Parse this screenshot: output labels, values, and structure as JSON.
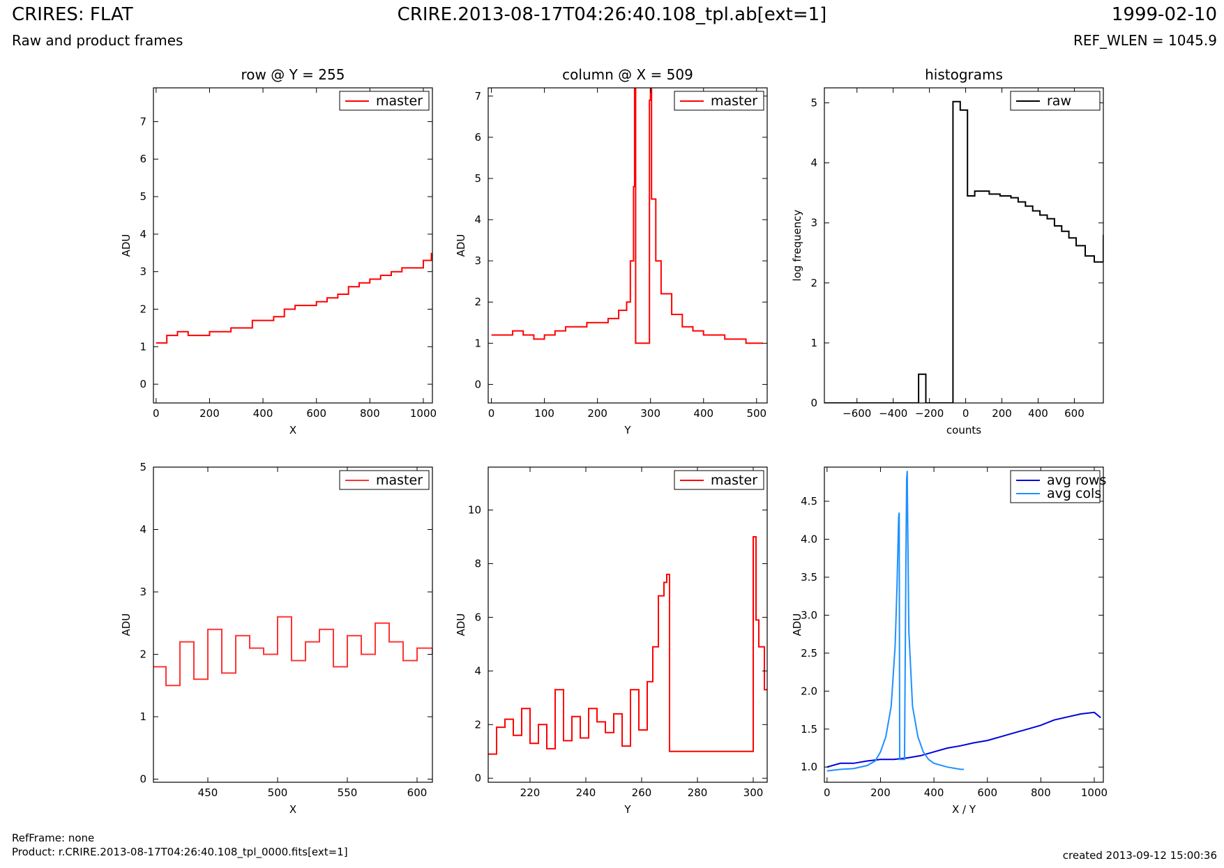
{
  "header": {
    "title_left": "CRIRES: FLAT",
    "subtitle_left": "Raw and product frames",
    "title_center": "CRIRE.2013-08-17T04:26:40.108_tpl.ab[ext=1]",
    "title_right": "1999-02-10",
    "subtitle_right": "REF_WLEN = 1045.9"
  },
  "footer": {
    "ref_frame": "RefFrame: none",
    "product": "Product: r.CRIRE.2013-08-17T04:26:40.108_tpl_0000.fits[ext=1]",
    "created": "created 2013-09-12 15:00:36"
  },
  "colors": {
    "master": "#ff0000",
    "master_zoom": "#ff3333",
    "raw": "#000000",
    "avg_rows": "#0000dd",
    "avg_cols": "#1e90ff"
  },
  "chart_data": [
    {
      "id": "row-plot",
      "type": "line",
      "title": "row @ Y = 255",
      "xlabel": "X",
      "ylabel": "ADU",
      "xlim": [
        -10,
        1034
      ],
      "ylim": [
        -0.5,
        7.9
      ],
      "xticks": [
        0,
        200,
        400,
        600,
        800,
        1000
      ],
      "yticks": [
        0,
        1,
        2,
        3,
        4,
        5,
        6,
        7
      ],
      "legend": {
        "position": "top-right",
        "entries": [
          "master"
        ]
      },
      "series": [
        {
          "name": "master",
          "color": "#ff0000",
          "step": true,
          "x": [
            0,
            40,
            80,
            120,
            160,
            200,
            240,
            280,
            320,
            360,
            400,
            440,
            480,
            520,
            560,
            600,
            640,
            680,
            720,
            760,
            800,
            840,
            880,
            920,
            960,
            1000,
            1030
          ],
          "values": [
            1.1,
            1.3,
            1.4,
            1.3,
            1.3,
            1.4,
            1.4,
            1.5,
            1.5,
            1.7,
            1.7,
            1.8,
            2.0,
            2.1,
            2.1,
            2.2,
            2.3,
            2.4,
            2.6,
            2.7,
            2.8,
            2.9,
            3.0,
            3.1,
            3.1,
            3.3,
            3.5
          ]
        }
      ]
    },
    {
      "id": "column-plot",
      "type": "line",
      "title": "column @ X = 509",
      "xlabel": "Y",
      "ylabel": "ADU",
      "xlim": [
        -6,
        520
      ],
      "ylim": [
        -0.45,
        7.2
      ],
      "xticks": [
        0,
        100,
        200,
        300,
        400,
        500
      ],
      "yticks": [
        0,
        1,
        2,
        3,
        4,
        5,
        6,
        7
      ],
      "legend": {
        "position": "top-right",
        "entries": [
          "master"
        ]
      },
      "series": [
        {
          "name": "master",
          "color": "#ff0000",
          "step": true,
          "x": [
            0,
            20,
            40,
            60,
            80,
            100,
            120,
            140,
            160,
            180,
            200,
            220,
            240,
            255,
            262,
            268,
            270,
            272,
            290,
            298,
            300,
            302,
            310,
            320,
            340,
            360,
            380,
            400,
            420,
            440,
            460,
            480,
            500,
            512
          ],
          "values": [
            1.2,
            1.2,
            1.3,
            1.2,
            1.1,
            1.2,
            1.3,
            1.4,
            1.4,
            1.5,
            1.5,
            1.6,
            1.8,
            2.0,
            3.0,
            4.8,
            7.3,
            1.0,
            1.0,
            6.9,
            7.3,
            4.5,
            3.0,
            2.2,
            1.7,
            1.4,
            1.3,
            1.2,
            1.2,
            1.1,
            1.1,
            1.0,
            1.0,
            1.0
          ]
        }
      ]
    },
    {
      "id": "histogram-plot",
      "type": "line",
      "title": "histograms",
      "xlabel": "counts",
      "ylabel": "log frequency",
      "xlim": [
        -780,
        760
      ],
      "ylim": [
        0,
        5.25
      ],
      "xticks": [
        -600,
        -400,
        -200,
        0,
        200,
        400,
        600
      ],
      "yticks": [
        0,
        1,
        2,
        3,
        4,
        5
      ],
      "legend": {
        "position": "top-right",
        "entries": [
          "raw"
        ]
      },
      "series": [
        {
          "name": "raw",
          "color": "#000000",
          "step": true,
          "x": [
            -780,
            -260,
            -220,
            -70,
            -30,
            10,
            50,
            130,
            190,
            250,
            290,
            330,
            370,
            410,
            450,
            490,
            530,
            570,
            610,
            660,
            710,
            760
          ],
          "values": [
            0,
            0.48,
            0,
            5.02,
            4.88,
            3.45,
            3.53,
            3.48,
            3.45,
            3.42,
            3.35,
            3.28,
            3.2,
            3.13,
            3.07,
            2.95,
            2.86,
            2.75,
            2.62,
            2.45,
            2.35,
            2.8
          ]
        }
      ]
    },
    {
      "id": "row-zoom-plot",
      "type": "line",
      "title": "",
      "xlabel": "X",
      "ylabel": "ADU",
      "xlim": [
        411,
        611
      ],
      "ylim": [
        -0.05,
        5.0
      ],
      "xticks": [
        450,
        500,
        550,
        600
      ],
      "yticks": [
        0,
        1,
        2,
        3,
        4,
        5
      ],
      "legend": {
        "position": "top-right",
        "entries": [
          "master"
        ]
      },
      "series": [
        {
          "name": "master",
          "color": "#ff3333",
          "step": true,
          "x": [
            411,
            420,
            430,
            440,
            450,
            460,
            470,
            480,
            490,
            500,
            510,
            520,
            530,
            540,
            550,
            560,
            570,
            580,
            590,
            600,
            611
          ],
          "values": [
            1.8,
            1.5,
            2.2,
            1.6,
            2.4,
            1.7,
            2.3,
            2.1,
            2.0,
            2.6,
            1.9,
            2.2,
            2.4,
            1.8,
            2.3,
            2.0,
            2.5,
            2.2,
            1.9,
            2.1,
            2.0
          ]
        }
      ]
    },
    {
      "id": "column-zoom-plot",
      "type": "line",
      "title": "",
      "xlabel": "Y",
      "ylabel": "ADU",
      "xlim": [
        205,
        305
      ],
      "ylim": [
        -0.15,
        11.6
      ],
      "xticks": [
        220,
        240,
        260,
        280,
        300
      ],
      "yticks": [
        0,
        2,
        4,
        6,
        8,
        10
      ],
      "legend": {
        "position": "top-right",
        "entries": [
          "master"
        ]
      },
      "series": [
        {
          "name": "master",
          "color": "#ff0000",
          "step": true,
          "x": [
            205,
            208,
            211,
            214,
            217,
            220,
            223,
            226,
            229,
            232,
            235,
            238,
            241,
            244,
            247,
            250,
            253,
            256,
            259,
            262,
            264,
            266,
            268,
            269,
            270,
            271,
            275,
            280,
            285,
            290,
            295,
            299,
            300,
            301,
            302,
            303,
            304,
            305
          ],
          "values": [
            0.9,
            1.9,
            2.2,
            1.6,
            2.6,
            1.3,
            2.0,
            1.1,
            3.3,
            1.4,
            2.3,
            1.5,
            2.6,
            2.1,
            1.7,
            2.4,
            1.2,
            3.3,
            1.8,
            3.6,
            4.9,
            6.8,
            7.3,
            7.6,
            1.0,
            1.0,
            1.0,
            1.0,
            1.0,
            1.0,
            1.0,
            1.0,
            9.0,
            5.9,
            4.9,
            4.9,
            3.3,
            3.3
          ]
        }
      ]
    },
    {
      "id": "averages-plot",
      "type": "line",
      "title": "",
      "xlabel": "X / Y",
      "ylabel": "ADU",
      "xlim": [
        -10,
        1034
      ],
      "ylim": [
        0.8,
        4.95
      ],
      "xticks": [
        0,
        200,
        400,
        600,
        800,
        1000
      ],
      "yticks": [
        1.0,
        1.5,
        2.0,
        2.5,
        3.0,
        3.5,
        4.0,
        4.5
      ],
      "legend": {
        "position": "top-right",
        "entries": [
          "avg rows",
          "avg cols"
        ]
      },
      "series": [
        {
          "name": "avg rows",
          "color": "#0000dd",
          "step": false,
          "x": [
            0,
            50,
            100,
            150,
            200,
            250,
            300,
            350,
            400,
            450,
            500,
            550,
            600,
            650,
            700,
            750,
            800,
            850,
            900,
            950,
            1000,
            1024
          ],
          "values": [
            1.0,
            1.05,
            1.05,
            1.08,
            1.1,
            1.1,
            1.12,
            1.15,
            1.2,
            1.25,
            1.28,
            1.32,
            1.35,
            1.4,
            1.45,
            1.5,
            1.55,
            1.62,
            1.66,
            1.7,
            1.72,
            1.65
          ]
        },
        {
          "name": "avg cols",
          "color": "#1e90ff",
          "step": false,
          "x": [
            0,
            50,
            100,
            150,
            180,
            200,
            220,
            240,
            255,
            262,
            268,
            270,
            272,
            290,
            296,
            298,
            300,
            302,
            306,
            320,
            340,
            360,
            380,
            400,
            450,
            500,
            512
          ],
          "values": [
            0.95,
            0.97,
            0.98,
            1.02,
            1.08,
            1.2,
            1.4,
            1.8,
            2.6,
            3.4,
            4.3,
            4.35,
            1.1,
            1.1,
            4.0,
            4.8,
            4.9,
            4.2,
            2.8,
            1.8,
            1.4,
            1.2,
            1.1,
            1.05,
            1.0,
            0.97,
            0.97
          ]
        }
      ]
    }
  ]
}
